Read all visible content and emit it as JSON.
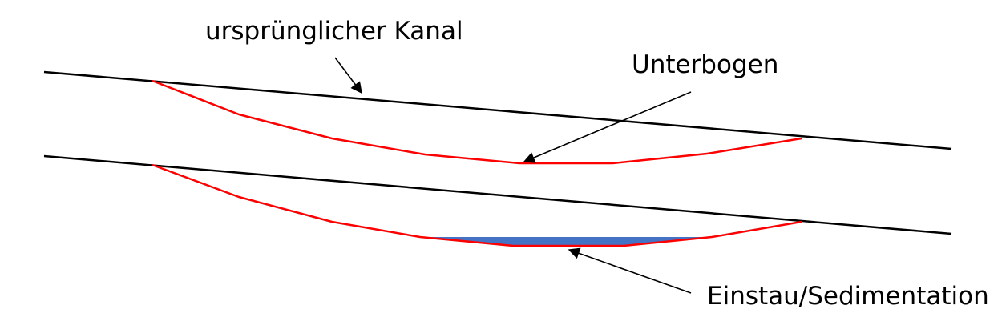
{
  "labels": {
    "original_channel": "ursprünglicher Kanal",
    "underbow": "Unterbogen",
    "impoundment": "Einstau/Sedimentation"
  },
  "colors": {
    "channel_line": "#000000",
    "profile_line": "#ff0000",
    "sediment_fill": "#4472c4",
    "arrow": "#000000",
    "background": "#ffffff"
  }
}
